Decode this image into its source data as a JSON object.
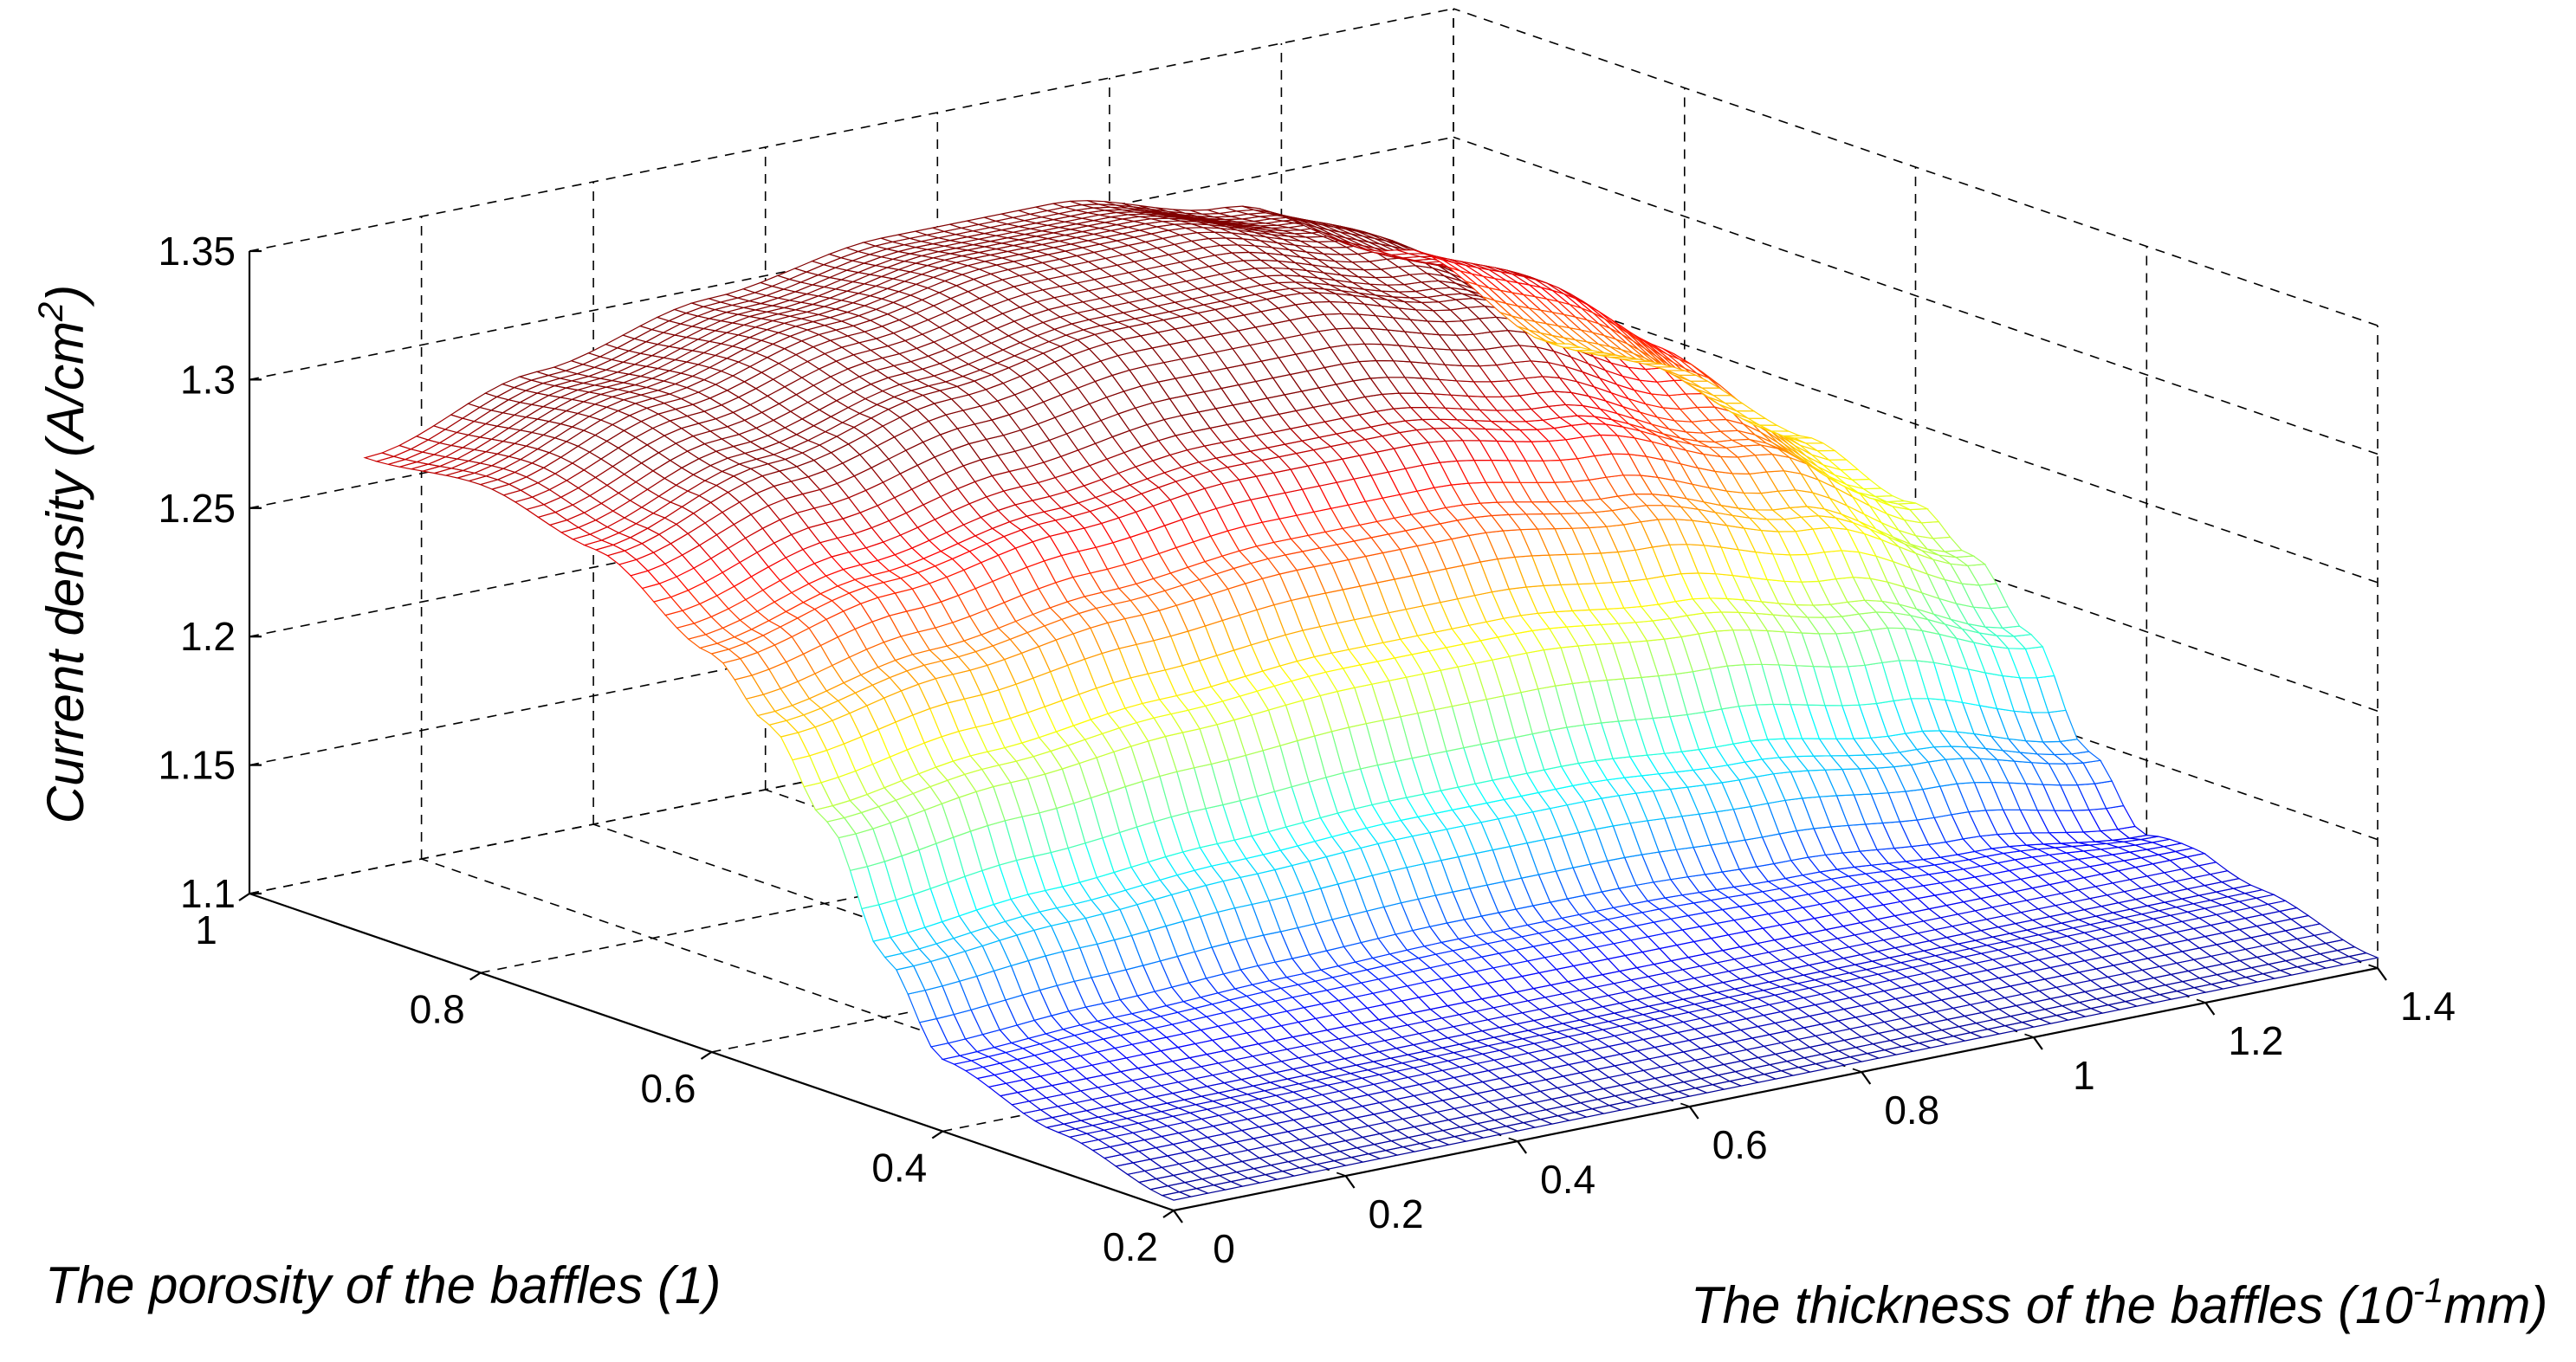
{
  "chart_data": {
    "type": "surface",
    "title": "",
    "xlabel": "The thickness of the baffles (10",
    "xlabel_sup": "-1",
    "xlabel_tail": "mm)",
    "ylabel": "The porosity of the baffles (1)",
    "zlabel": "Current density (A/cm",
    "zlabel_sup": "2",
    "zlabel_tail": ")",
    "xlim": [
      0,
      1.4
    ],
    "ylim": [
      0.2,
      1.0
    ],
    "zlim": [
      1.1,
      1.35
    ],
    "x_ticks": [
      "0",
      "0.2",
      "0.4",
      "0.6",
      "0.8",
      "1",
      "1.2",
      "1.4"
    ],
    "y_ticks": [
      "0.2",
      "0.4",
      "0.6",
      "0.8",
      "1"
    ],
    "z_ticks": [
      "1.1",
      "1.15",
      "1.2",
      "1.25",
      "1.3",
      "1.35"
    ],
    "grid": true,
    "colormap": "jet",
    "surface_x_range": [
      0,
      1.4
    ],
    "surface_y_range": [
      0.2,
      0.9
    ],
    "z_vs_porosity": {
      "porosity": [
        0.2,
        0.3,
        0.4,
        0.45,
        0.5,
        0.55,
        0.6,
        0.7,
        0.8,
        0.9
      ],
      "current_density": [
        1.104,
        1.115,
        1.128,
        1.16,
        1.205,
        1.235,
        1.255,
        1.28,
        1.29,
        1.285
      ]
    },
    "z_vs_thickness": {
      "thickness": [
        0,
        0.2,
        0.4,
        0.6,
        0.8,
        1.0,
        1.2,
        1.4
      ],
      "current_density_offset": [
        0.0,
        0.02,
        0.035,
        0.045,
        0.045,
        0.03,
        0.0,
        -0.05
      ]
    }
  }
}
